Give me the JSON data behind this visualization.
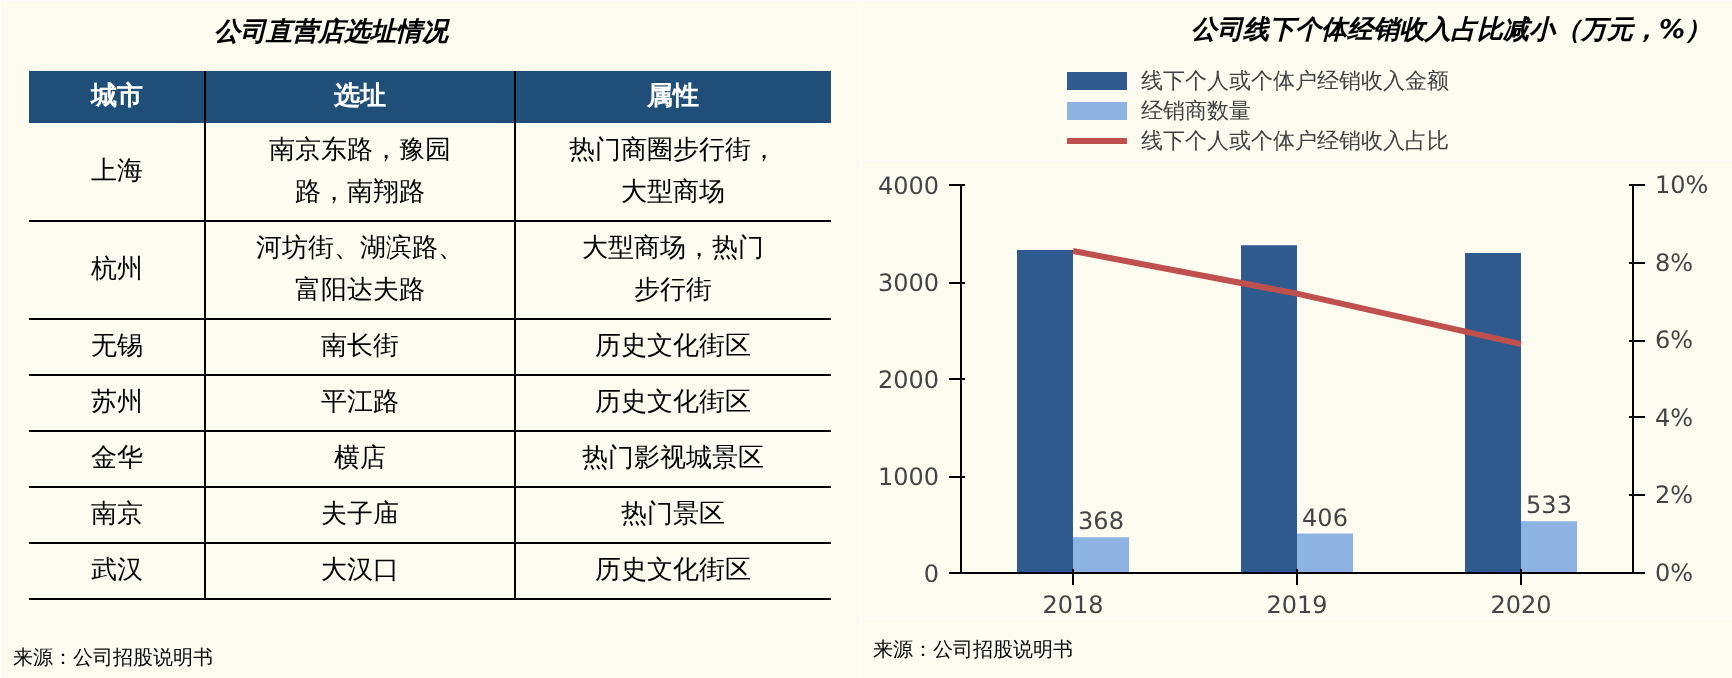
{
  "chart_data": [
    {
      "type": "other",
      "title": "公司直营店选址情况",
      "categories": [
        "城市",
        "选址",
        "属性"
      ],
      "y_categories": [
        "上海",
        "杭州",
        "无锡",
        "苏州",
        "金华",
        "南京",
        "武汉"
      ],
      "cell_labels": [
        [
          "南京东路，豫园路，南翔路",
          "热门商圈步行街，大型商场"
        ],
        [
          "河坊街、湖滨路、富阳达夫路",
          "大型商场，热门步行街"
        ],
        [
          "南长街",
          "历史文化街区"
        ],
        [
          "平江路",
          "历史文化街区"
        ],
        [
          "横店",
          "热门影视城景区"
        ],
        [
          "夫子庙",
          "热门景区"
        ],
        [
          "大汉口",
          "历史文化街区"
        ]
      ],
      "annotations": [
        "来源：公司招股说明书"
      ]
    },
    {
      "type": "bar",
      "title": "公司线下个体经销收入占比减小（万元，%）",
      "categories": [
        "2018",
        "2019",
        "2020"
      ],
      "series": [
        {
          "name": "线下个人或个体户经销收入金额",
          "color": "#2f5a8f",
          "values": [
            3330,
            3380,
            3300
          ]
        },
        {
          "name": "经销商数量",
          "color": "#8db3e2",
          "values": [
            368,
            406,
            533
          ],
          "value_labels": [
            "368",
            "406",
            "533"
          ]
        },
        {
          "name": "线下个人或个体户经销收入占比",
          "type": "line",
          "axis": "y2",
          "color": "#c0504d",
          "values": [
            8.3,
            7.2,
            5.9
          ]
        }
      ],
      "ylim": [
        0,
        4000
      ],
      "yticks": [
        0,
        1000,
        2000,
        3000,
        4000
      ],
      "y2lim": [
        0,
        10
      ],
      "y2ticks": [
        {
          "value": 0,
          "label": "0%"
        },
        {
          "value": 2,
          "label": "2%"
        },
        {
          "value": 4,
          "label": "4%"
        },
        {
          "value": 6,
          "label": "6%"
        },
        {
          "value": 8,
          "label": "8%"
        },
        {
          "value": 10,
          "label": "10%"
        }
      ],
      "grid": false,
      "legend": "top",
      "annotations": [
        "来源：公司招股说明书"
      ]
    }
  ]
}
